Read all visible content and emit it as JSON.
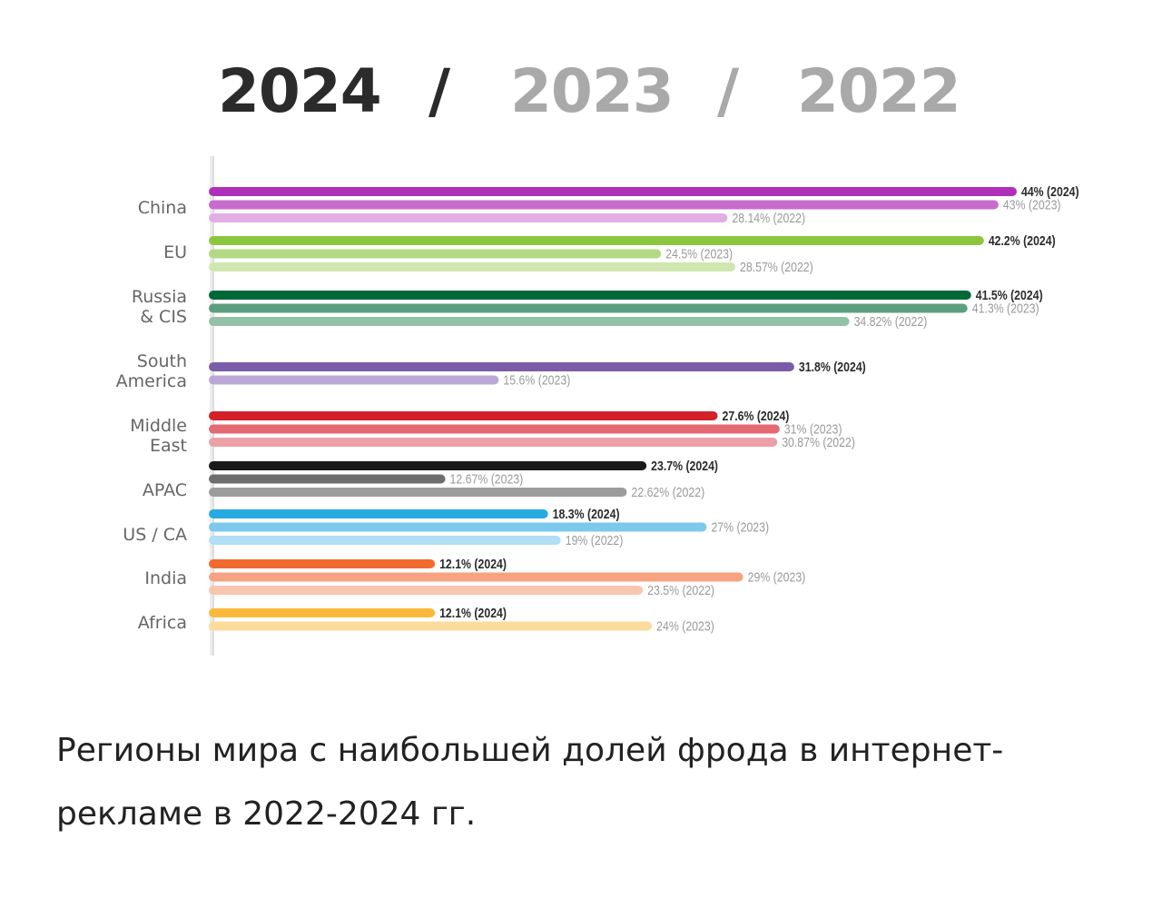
{
  "title": {
    "year_2024": "2024",
    "sep1": "/",
    "year_2023": "2023",
    "sep2": "/",
    "year_2022": "2022"
  },
  "chart_data": {
    "type": "bar",
    "orientation": "horizontal",
    "xlim": [
      0,
      44
    ],
    "series_names": [
      "2024",
      "2023",
      "2022"
    ],
    "categories": [
      "China",
      "EU",
      "Russia\n& CIS",
      "South\nAmerica",
      "Middle\nEast",
      "APAC",
      "US / CA",
      "India",
      "Africa"
    ],
    "groups": [
      {
        "region": "China",
        "bars": [
          {
            "year": "2024",
            "value": 44,
            "label": "44% (2024)",
            "color": "#b02fb8"
          },
          {
            "year": "2023",
            "value": 43,
            "label": "43% (2023)",
            "color": "#c96bcd"
          },
          {
            "year": "2022",
            "value": 28.14,
            "label": "28.14% (2022)",
            "color": "#e2aee5"
          }
        ]
      },
      {
        "region": "EU",
        "bars": [
          {
            "year": "2024",
            "value": 42.2,
            "label": "42.2% (2024)",
            "color": "#8cc63f"
          },
          {
            "year": "2023",
            "value": 24.5,
            "label": "24.5% (2023)",
            "color": "#b3d983"
          },
          {
            "year": "2022",
            "value": 28.57,
            "label": "28.57% (2022)",
            "color": "#cfe7ae"
          }
        ]
      },
      {
        "region": "Russia\n& CIS",
        "bars": [
          {
            "year": "2024",
            "value": 41.5,
            "label": "41.5% (2024)",
            "color": "#006837"
          },
          {
            "year": "2023",
            "value": 41.3,
            "label": "41.3% (2023)",
            "color": "#5c9f7e"
          },
          {
            "year": "2022",
            "value": 34.82,
            "label": "34.82% (2022)",
            "color": "#93c1a8"
          }
        ]
      },
      {
        "region": "South\nAmerica",
        "bars": [
          {
            "year": "2024",
            "value": 31.8,
            "label": "31.8% (2024)",
            "color": "#7b5ca8"
          },
          {
            "year": "2023",
            "value": 15.6,
            "label": "15.6% (2023)",
            "color": "#baa9d6"
          }
        ]
      },
      {
        "region": "Middle\nEast",
        "bars": [
          {
            "year": "2024",
            "value": 27.6,
            "label": "27.6% (2024)",
            "color": "#d4202b"
          },
          {
            "year": "2023",
            "value": 31,
            "label": "31% (2023)",
            "color": "#e46a73"
          },
          {
            "year": "2022",
            "value": 30.87,
            "label": "30.87% (2022)",
            "color": "#eda0a5"
          }
        ]
      },
      {
        "region": "APAC",
        "bars": [
          {
            "year": "2024",
            "value": 23.7,
            "label": "23.7% (2024)",
            "color": "#1a1a1a"
          },
          {
            "year": "2023",
            "value": 12.67,
            "label": "12.67% (2023)",
            "color": "#6d6d6d"
          },
          {
            "year": "2022",
            "value": 22.62,
            "label": "22.62% (2022)",
            "color": "#9c9c9c"
          }
        ]
      },
      {
        "region": "US / CA",
        "bars": [
          {
            "year": "2024",
            "value": 18.3,
            "label": "18.3% (2024)",
            "color": "#27a9e1"
          },
          {
            "year": "2023",
            "value": 27,
            "label": "27% (2023)",
            "color": "#7cc9ee"
          },
          {
            "year": "2022",
            "value": 19,
            "label": "19% (2022)",
            "color": "#b0def4"
          }
        ]
      },
      {
        "region": "India",
        "bars": [
          {
            "year": "2024",
            "value": 12.1,
            "label": "12.1% (2024)",
            "color": "#f26a30"
          },
          {
            "year": "2023",
            "value": 29,
            "label": "29% (2023)",
            "color": "#f7a382"
          },
          {
            "year": "2022",
            "value": 23.5,
            "label": "23.5% (2022)",
            "color": "#f9c5ae"
          }
        ]
      },
      {
        "region": "Africa",
        "bars": [
          {
            "year": "2024",
            "value": 12.1,
            "label": "12.1% (2024)",
            "color": "#fbb93b"
          },
          {
            "year": "2023",
            "value": 24,
            "label": "24% (2023)",
            "color": "#fcdb9d"
          }
        ]
      }
    ]
  },
  "caption": "Регионы мира с наибольшей долей фрода в интернет-рекламе в 2022-2024 гг."
}
